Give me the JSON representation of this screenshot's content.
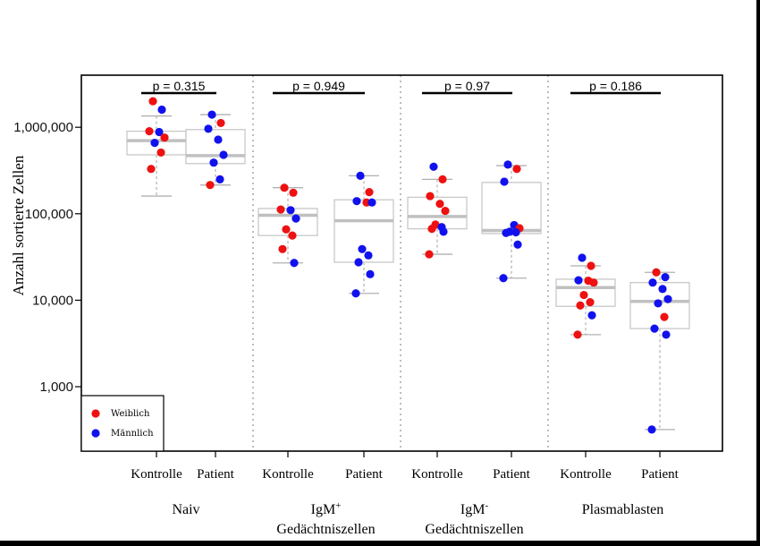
{
  "chart_data": {
    "type": "box",
    "ylabel": "Anzahl sortierte Zellen",
    "y_scale": "log",
    "ylim": [
      180,
      4000000
    ],
    "yticks": [
      {
        "value": 1000,
        "label": "1,000"
      },
      {
        "value": 10000,
        "label": "10,000"
      },
      {
        "value": 100000,
        "label": "100,000"
      },
      {
        "value": 1000000,
        "label": "1,000,000"
      }
    ],
    "groups": [
      {
        "label": "Naiv",
        "label_line2": "",
        "p_label": "p = 0.315",
        "boxes": [
          {
            "category": "Kontrolle",
            "min": 160000,
            "q1": 480000,
            "median": 700000,
            "q3": 900000,
            "max": 1350000,
            "points": [
              {
                "v": 2000000,
                "sex": "w"
              },
              {
                "v": 1600000,
                "sex": "m"
              },
              {
                "v": 900000,
                "sex": "w"
              },
              {
                "v": 880000,
                "sex": "m"
              },
              {
                "v": 760000,
                "sex": "w"
              },
              {
                "v": 660000,
                "sex": "m"
              },
              {
                "v": 510000,
                "sex": "w"
              },
              {
                "v": 330000,
                "sex": "w"
              }
            ]
          },
          {
            "category": "Patient",
            "min": 215000,
            "q1": 380000,
            "median": 470000,
            "q3": 940000,
            "max": 1400000,
            "points": [
              {
                "v": 1400000,
                "sex": "m"
              },
              {
                "v": 1120000,
                "sex": "w"
              },
              {
                "v": 960000,
                "sex": "m"
              },
              {
                "v": 720000,
                "sex": "m"
              },
              {
                "v": 480000,
                "sex": "m"
              },
              {
                "v": 390000,
                "sex": "m"
              },
              {
                "v": 250000,
                "sex": "m"
              },
              {
                "v": 215000,
                "sex": "w"
              }
            ]
          }
        ]
      },
      {
        "label": "IgM",
        "label_sup": "+",
        "label_line2": "Gedächtniszellen",
        "p_label": "p = 0.949",
        "boxes": [
          {
            "category": "Kontrolle",
            "min": 27000,
            "q1": 56000,
            "median": 96000,
            "q3": 115000,
            "max": 200000,
            "points": [
              {
                "v": 200000,
                "sex": "w"
              },
              {
                "v": 175000,
                "sex": "w"
              },
              {
                "v": 112000,
                "sex": "w"
              },
              {
                "v": 110000,
                "sex": "m"
              },
              {
                "v": 88000,
                "sex": "m"
              },
              {
                "v": 66000,
                "sex": "w"
              },
              {
                "v": 56000,
                "sex": "w"
              },
              {
                "v": 39000,
                "sex": "w"
              },
              {
                "v": 27000,
                "sex": "m"
              }
            ]
          },
          {
            "category": "Patient",
            "min": 12000,
            "q1": 27500,
            "median": 83000,
            "q3": 145000,
            "max": 275000,
            "points": [
              {
                "v": 275000,
                "sex": "m"
              },
              {
                "v": 178000,
                "sex": "w"
              },
              {
                "v": 140000,
                "sex": "m"
              },
              {
                "v": 135000,
                "sex": "w"
              },
              {
                "v": 135000,
                "sex": "m"
              },
              {
                "v": 39000,
                "sex": "m"
              },
              {
                "v": 33000,
                "sex": "m"
              },
              {
                "v": 27500,
                "sex": "m"
              },
              {
                "v": 20000,
                "sex": "m"
              },
              {
                "v": 12000,
                "sex": "m"
              }
            ]
          }
        ]
      },
      {
        "label": "IgM",
        "label_sup": "-",
        "label_line2": "Gedächtniszellen",
        "p_label": "p = 0.97",
        "boxes": [
          {
            "category": "Kontrolle",
            "min": 34000,
            "q1": 67000,
            "median": 93000,
            "q3": 155000,
            "max": 250000,
            "points": [
              {
                "v": 350000,
                "sex": "m"
              },
              {
                "v": 250000,
                "sex": "w"
              },
              {
                "v": 160000,
                "sex": "w"
              },
              {
                "v": 130000,
                "sex": "w"
              },
              {
                "v": 108000,
                "sex": "w"
              },
              {
                "v": 75000,
                "sex": "w"
              },
              {
                "v": 70000,
                "sex": "m"
              },
              {
                "v": 67000,
                "sex": "w"
              },
              {
                "v": 62000,
                "sex": "m"
              },
              {
                "v": 34000,
                "sex": "w"
              }
            ]
          },
          {
            "category": "Patient",
            "min": 18000,
            "q1": 59000,
            "median": 64000,
            "q3": 230000,
            "max": 360000,
            "points": [
              {
                "v": 370000,
                "sex": "m"
              },
              {
                "v": 330000,
                "sex": "w"
              },
              {
                "v": 235000,
                "sex": "m"
              },
              {
                "v": 74000,
                "sex": "m"
              },
              {
                "v": 68000,
                "sex": "w"
              },
              {
                "v": 62000,
                "sex": "m"
              },
              {
                "v": 61000,
                "sex": "m"
              },
              {
                "v": 60000,
                "sex": "m"
              },
              {
                "v": 44000,
                "sex": "m"
              },
              {
                "v": 18000,
                "sex": "m"
              }
            ]
          }
        ]
      },
      {
        "label": "Plasmablasten",
        "label_line2": "",
        "p_label": "p = 0.186",
        "boxes": [
          {
            "category": "Kontrolle",
            "min": 4000,
            "q1": 8500,
            "median": 14000,
            "q3": 17500,
            "max": 25000,
            "points": [
              {
                "v": 31000,
                "sex": "m"
              },
              {
                "v": 25000,
                "sex": "w"
              },
              {
                "v": 17000,
                "sex": "m"
              },
              {
                "v": 16800,
                "sex": "w"
              },
              {
                "v": 16000,
                "sex": "w"
              },
              {
                "v": 11500,
                "sex": "w"
              },
              {
                "v": 9500,
                "sex": "w"
              },
              {
                "v": 8700,
                "sex": "w"
              },
              {
                "v": 6700,
                "sex": "m"
              },
              {
                "v": 4000,
                "sex": "w"
              }
            ]
          },
          {
            "category": "Patient",
            "min": 320,
            "q1": 4700,
            "median": 9700,
            "q3": 16000,
            "max": 21000,
            "points": [
              {
                "v": 21000,
                "sex": "w"
              },
              {
                "v": 18500,
                "sex": "m"
              },
              {
                "v": 16000,
                "sex": "m"
              },
              {
                "v": 13500,
                "sex": "m"
              },
              {
                "v": 10300,
                "sex": "m"
              },
              {
                "v": 9200,
                "sex": "m"
              },
              {
                "v": 6400,
                "sex": "w"
              },
              {
                "v": 4700,
                "sex": "m"
              },
              {
                "v": 4000,
                "sex": "m"
              },
              {
                "v": 320,
                "sex": "m"
              }
            ]
          }
        ]
      }
    ],
    "legend": {
      "position": "bottom-left",
      "entries": [
        {
          "label": "Weiblich",
          "color": "#ee1111"
        },
        {
          "label": "Männlich",
          "color": "#1111ee"
        }
      ]
    },
    "colors": {
      "female": "#ee1111",
      "male": "#1111ee",
      "box_stroke": "#c8c8c8",
      "median": "#c0c0c0",
      "whisker": "#b0b0b0",
      "separator": "#bdbdbd"
    }
  }
}
